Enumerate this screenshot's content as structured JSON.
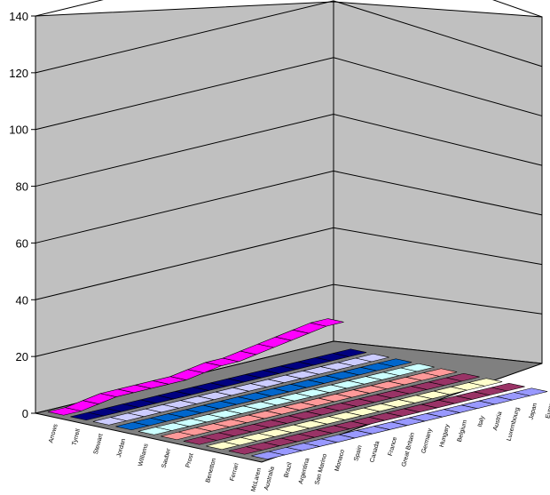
{
  "chart_data": {
    "type": "line",
    "title": "",
    "xlabel": "",
    "ylabel": "",
    "ylim": [
      0,
      140
    ],
    "yticks": [
      0,
      20,
      40,
      60,
      80,
      100,
      120,
      140
    ],
    "grid": true,
    "x": [
      "Australia",
      "Brazil",
      "Argentina",
      "San Marino",
      "Monaco",
      "Spain",
      "Canada",
      "France",
      "Great Britain",
      "Germany",
      "Hungary",
      "Belgium",
      "Italy",
      "Austria",
      "Luxembourg",
      "Japan",
      "Europe"
    ],
    "series_labels": [
      "Arrows",
      "Tyrrell",
      "Stewart",
      "Jordan",
      "Williams",
      "Sauber",
      "Prost",
      "Benetton",
      "Ferrari",
      "McLaren"
    ],
    "series": [
      {
        "label": "Arrows",
        "color": "#ff00ff",
        "values": [
          0,
          0,
          0,
          0,
          0,
          0,
          0,
          1,
          1,
          1,
          1,
          1,
          4,
          4,
          4,
          6,
          6
        ]
      },
      {
        "label": "Tyrrell",
        "color": "#000080",
        "values": [
          0,
          0,
          0,
          0,
          0,
          0,
          0,
          0,
          0,
          0,
          0,
          0,
          0,
          0,
          0,
          0,
          0
        ]
      },
      {
        "label": "Stewart",
        "color": "#ccccff",
        "values": [
          0,
          0,
          0,
          0,
          0,
          0,
          0,
          0,
          0,
          0,
          0,
          0,
          0,
          0,
          0,
          0,
          0
        ]
      },
      {
        "label": "Jordan",
        "color": "#0066cc",
        "values": [
          0,
          0,
          0,
          0,
          0,
          0,
          0,
          0,
          0,
          2,
          4,
          4,
          5,
          9,
          10,
          14,
          14
        ]
      },
      {
        "label": "Williams",
        "color": "#ccffff",
        "values": [
          0,
          0,
          0,
          0,
          0,
          0,
          0,
          0,
          0,
          0,
          0,
          0,
          0,
          0,
          0,
          0,
          0
        ]
      },
      {
        "label": "Sauber",
        "color": "#ff9999",
        "values": [
          0,
          0,
          0,
          0,
          0,
          0,
          0,
          0,
          0,
          0,
          0,
          0,
          0,
          0,
          0,
          0,
          0
        ]
      },
      {
        "label": "Prost",
        "color": "#993366",
        "values": [
          0,
          0,
          0,
          0,
          0,
          0,
          0,
          0,
          0,
          0,
          0,
          0,
          0,
          0,
          0,
          0,
          0
        ]
      },
      {
        "label": "Benetton",
        "color": "#ffffcc",
        "values": [
          0,
          0,
          0,
          0,
          0,
          0,
          0,
          0,
          0,
          0,
          0,
          0,
          0,
          0,
          0,
          0,
          0
        ]
      },
      {
        "label": "Ferrari",
        "color": "#993366",
        "values": [
          0,
          0,
          0,
          0,
          0,
          0,
          0,
          0,
          0,
          0,
          0,
          0,
          0,
          0,
          0,
          0,
          0
        ]
      },
      {
        "label": "McLaren",
        "color": "#9999ff",
        "values": [
          0,
          0,
          0,
          0,
          0,
          0,
          0,
          0,
          0,
          0,
          0,
          0,
          0,
          0,
          0,
          0,
          0
        ]
      }
    ],
    "display_series": [
      {
        "label": "Arrows",
        "color": "#ff00ff",
        "values": [
          0,
          0,
          1,
          2,
          2,
          2,
          2,
          2,
          3,
          4,
          4,
          5,
          6,
          7,
          8,
          9,
          9
        ]
      },
      {
        "label": "Tyrrell",
        "color": "#000080",
        "values": [
          0,
          0,
          0,
          0,
          0,
          0,
          0,
          0,
          0,
          0,
          0,
          0,
          0,
          0,
          0,
          0,
          0
        ]
      },
      {
        "label": "Stewart",
        "color": "#ccccff",
        "values": [
          0,
          0,
          0,
          0,
          0,
          0,
          0,
          0,
          0,
          0,
          0,
          0,
          0,
          0,
          0,
          0,
          0
        ]
      },
      {
        "label": "Jordan",
        "color": "#0066cc",
        "values": [
          0,
          0,
          0,
          0,
          0,
          0,
          0,
          0,
          0,
          0,
          0,
          0,
          0,
          0,
          0,
          0,
          0
        ]
      },
      {
        "label": "Williams",
        "color": "#ccffff",
        "values": [
          0,
          0,
          0,
          0,
          0,
          0,
          0,
          0,
          0,
          0,
          0,
          0,
          0,
          0,
          0,
          0,
          0
        ]
      },
      {
        "label": "Sauber",
        "color": "#ff9999",
        "values": [
          0,
          0,
          0,
          0,
          0,
          0,
          0,
          0,
          0,
          0,
          0,
          0,
          0,
          0,
          0,
          0,
          0
        ]
      },
      {
        "label": "Prost",
        "color": "#993366",
        "values": [
          0,
          0,
          0,
          0,
          0,
          0,
          0,
          0,
          0,
          0,
          0,
          0,
          0,
          0,
          0,
          0,
          0
        ]
      },
      {
        "label": "Benetton",
        "color": "#ffffcc",
        "values": [
          0,
          0,
          0,
          0,
          0,
          0,
          0,
          0,
          0,
          0,
          0,
          0,
          0,
          0,
          0,
          0,
          0
        ]
      },
      {
        "label": "Ferrari",
        "color": "#993366",
        "values": [
          0,
          0,
          0,
          0,
          0,
          0,
          0,
          0,
          0,
          0,
          0,
          0,
          0,
          0,
          0,
          0,
          0
        ]
      },
      {
        "label": "McLaren",
        "color": "#9999ff",
        "values": [
          0,
          0,
          0,
          0,
          0,
          0,
          0,
          0,
          0,
          0,
          0,
          0,
          0,
          0,
          0,
          0,
          0
        ]
      }
    ]
  }
}
